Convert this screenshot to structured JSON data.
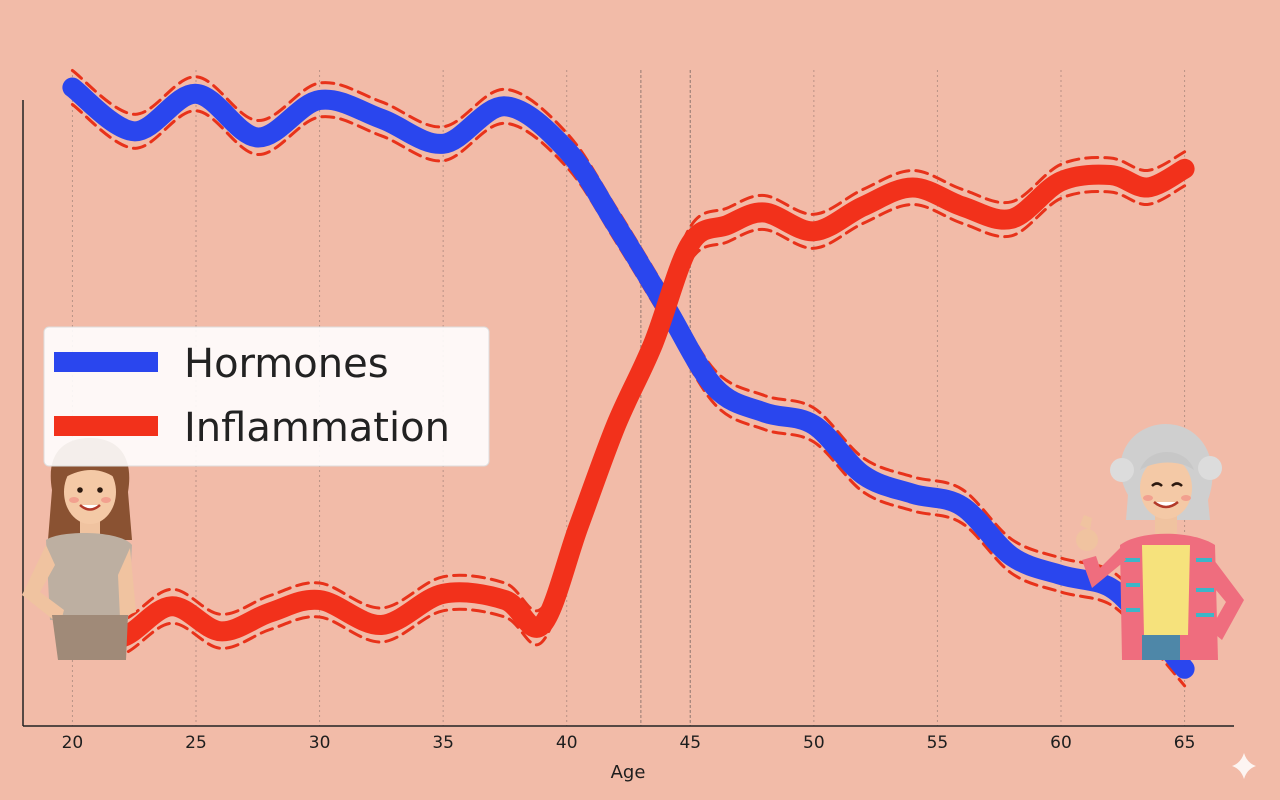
{
  "chart_data": {
    "type": "line",
    "title": "",
    "xlabel": "Age",
    "ylabel": "",
    "xlim": [
      18,
      67
    ],
    "ylim": [
      0,
      100
    ],
    "x_ticks": [
      20,
      25,
      30,
      35,
      40,
      45,
      50,
      55,
      60,
      65
    ],
    "grid": "vertical",
    "legend_position": "middle-left",
    "series": [
      {
        "name": "Hormones",
        "color": "#2a46ee",
        "band_color": "#e8321a",
        "points": [
          [
            20,
            98
          ],
          [
            22.5,
            91
          ],
          [
            25,
            97
          ],
          [
            27.5,
            90
          ],
          [
            30,
            96
          ],
          [
            32.5,
            93
          ],
          [
            35,
            89
          ],
          [
            37.5,
            95
          ],
          [
            40,
            88
          ],
          [
            42,
            76
          ],
          [
            44,
            63
          ],
          [
            46,
            50
          ],
          [
            48,
            46
          ],
          [
            50,
            44
          ],
          [
            52,
            36
          ],
          [
            54,
            33
          ],
          [
            56,
            31
          ],
          [
            58,
            23
          ],
          [
            60,
            20
          ],
          [
            62,
            18
          ],
          [
            63.5,
            12
          ],
          [
            65,
            5
          ]
        ]
      },
      {
        "name": "Inflammation",
        "color": "#f2311b",
        "band_color": "#e8321a",
        "points": [
          [
            20,
            10
          ],
          [
            22,
            10
          ],
          [
            24,
            15
          ],
          [
            26,
            11
          ],
          [
            28,
            14
          ],
          [
            30,
            16
          ],
          [
            32.5,
            12
          ],
          [
            35,
            17
          ],
          [
            37.5,
            16
          ],
          [
            39,
            12
          ],
          [
            40.5,
            28
          ],
          [
            42,
            44
          ],
          [
            43.5,
            57
          ],
          [
            45,
            73
          ],
          [
            46.5,
            76
          ],
          [
            48,
            78
          ],
          [
            50,
            75
          ],
          [
            52,
            79
          ],
          [
            54,
            82
          ],
          [
            56,
            79
          ],
          [
            58,
            77
          ],
          [
            60,
            83
          ],
          [
            62,
            84
          ],
          [
            63.5,
            82
          ],
          [
            65,
            85
          ]
        ]
      }
    ],
    "reference_lines": [
      43,
      45
    ]
  },
  "figures": {
    "left": "young-woman-illustration",
    "right": "older-woman-illustration"
  },
  "icons": {
    "corner": "sparkle-icon"
  }
}
